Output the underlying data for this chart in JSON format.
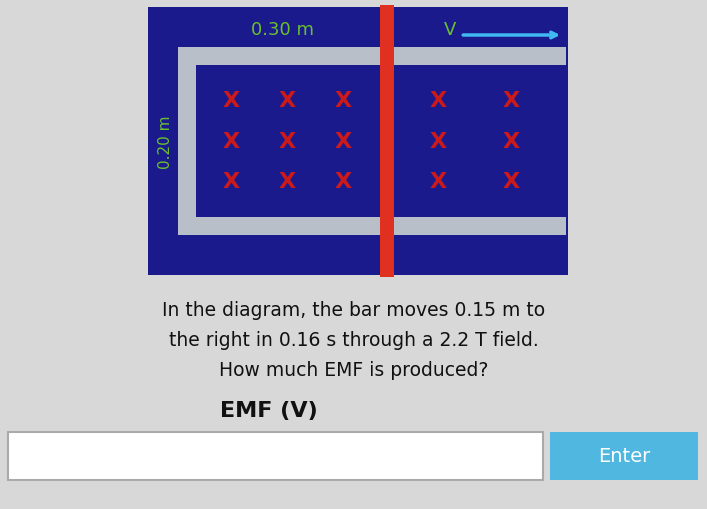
{
  "fig_w": 7.07,
  "fig_h": 5.1,
  "bg_color": "#d8d8d8",
  "diagram_bg": "#1a1a8c",
  "rail_color": "#b8bfc8",
  "bar_color": "#e03020",
  "x_color": "#cc1a1a",
  "green_label_color": "#6abf30",
  "arrow_color": "#40b8f0",
  "enter_bg": "#50b8e0",
  "text_color": "#111111",
  "emf_label": "EMF (V)",
  "enter_text": "Enter",
  "text_line1": "In the diagram, the bar moves 0.15 m to",
  "text_line2": "the right in 0.16 s through a 2.2 T field.",
  "text_line3": "How much EMF is produced?",
  "label_030": "0.30 m",
  "label_020": "0.20 m",
  "label_v": "V"
}
